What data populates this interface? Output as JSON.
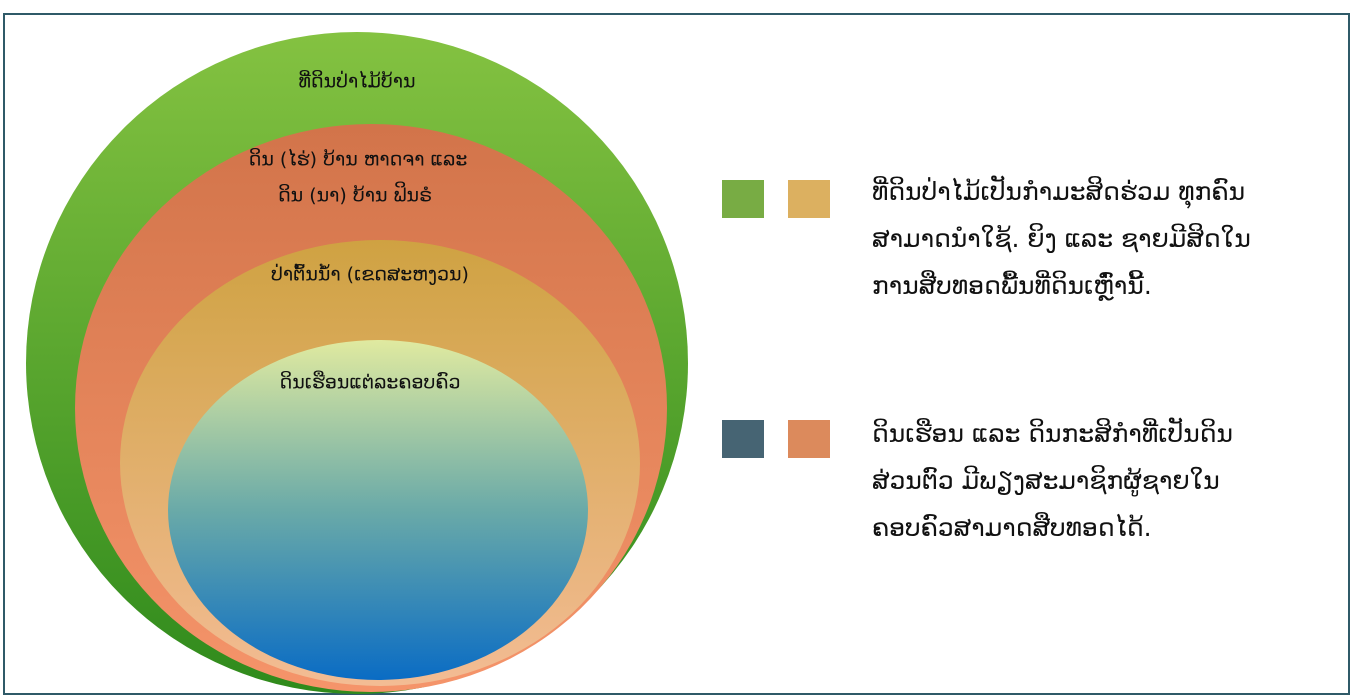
{
  "circles": [
    {
      "label": [
        "ທີ່ດິນປ່າໄມ້ບ້ານ"
      ]
    },
    {
      "label": [
        "ດິນ (ໄຮ່) ບ້ານ ຫາດຈາ ແລະ",
        "ດິນ (ນາ) ບ້ານ ຟິນຣໍ"
      ]
    },
    {
      "label": [
        "ປ່າຕົ້ນນ້ຳ (ເຂດສະຫງວນ)"
      ]
    },
    {
      "label": [
        "ດິນເຮືອນແຕ່ລະຄອບຄົວ"
      ]
    }
  ],
  "legend": [
    {
      "text": [
        "ທີ່ດິນປ່າໄມ້ເປັນກຳມະສິດຮ່ວມ ທຸກຄົນ",
        "ສາມາດນຳໃຊ້. ຍິງ ແລະ ຊາຍມີສິດໃນ",
        "ການສືບທອດພື້ນທີ່ດິນເຫຼົ່ານີ້."
      ]
    },
    {
      "text": [
        "ດິນເຮືອນ ແລະ ດິນກະສິກຳທີ່ເປັນດິນ",
        "ສ່ວນຕົວ ມີພຽງສະມາຊິກຜູ້ຊາຍໃນ",
        "ຄອບຄົວສາມາດສືບທອດໄດ້."
      ]
    }
  ]
}
